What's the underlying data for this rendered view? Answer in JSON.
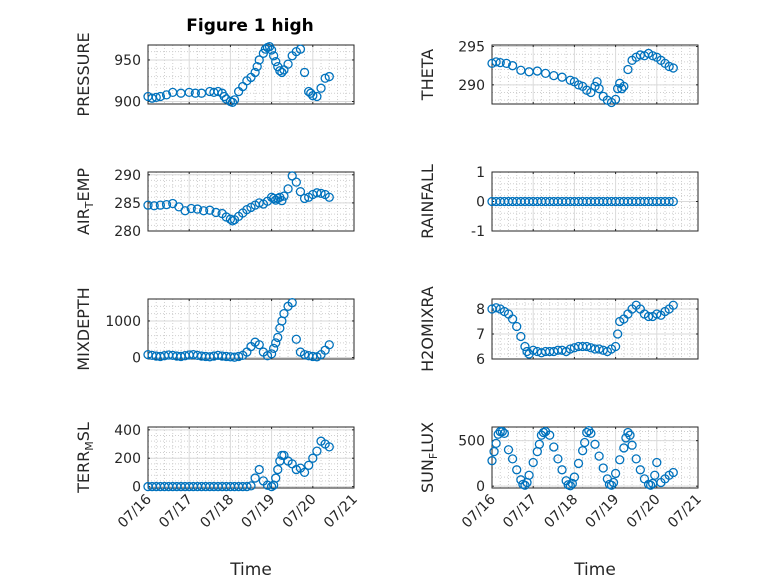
{
  "figure_title": "Figure 1 high",
  "x_axis_label": "Time",
  "x_tick_labels": [
    "07/16",
    "07/17",
    "07/18",
    "07/19",
    "07/20",
    "07/21"
  ],
  "marker_color": "#0072BD",
  "chart_data": [
    {
      "type": "scatter",
      "title": "Figure 1 high",
      "ylabel": "PRESSURE",
      "ylim": [
        897,
        968
      ],
      "yticks": [
        900,
        950
      ],
      "xlim": [
        0,
        5
      ],
      "show_xticklabels": false,
      "grid": true,
      "x": [
        0.0,
        0.1,
        0.2,
        0.3,
        0.45,
        0.6,
        0.8,
        1.0,
        1.15,
        1.3,
        1.5,
        1.6,
        1.7,
        1.8,
        1.85,
        1.9,
        2.0,
        2.05,
        2.1,
        2.2,
        2.3,
        2.4,
        2.5,
        2.6,
        2.65,
        2.7,
        2.8,
        2.85,
        2.9,
        2.95,
        3.0,
        3.05,
        3.1,
        3.15,
        3.2,
        3.25,
        3.3,
        3.4,
        3.5,
        3.6,
        3.7,
        3.8,
        3.9,
        3.95,
        4.0,
        4.1,
        4.2,
        4.3,
        4.4
      ],
      "y": [
        906,
        904,
        905,
        906,
        908,
        911,
        910,
        911,
        910,
        910,
        912,
        911,
        912,
        910,
        906,
        903,
        900,
        899,
        902,
        912,
        918,
        925,
        929,
        935,
        942,
        950,
        958,
        963,
        965,
        966,
        962,
        955,
        948,
        942,
        937,
        935,
        938,
        945,
        955,
        960,
        963,
        935,
        912,
        910,
        907,
        906,
        916,
        928,
        930
      ]
    },
    {
      "type": "scatter",
      "ylabel": "THETA",
      "ylim": [
        287.5,
        295.2
      ],
      "yticks": [
        290,
        295
      ],
      "xlim": [
        0,
        5
      ],
      "show_xticklabels": false,
      "grid": true,
      "x": [
        0.0,
        0.1,
        0.2,
        0.35,
        0.5,
        0.7,
        0.9,
        1.1,
        1.3,
        1.5,
        1.7,
        1.9,
        2.0,
        2.1,
        2.2,
        2.3,
        2.4,
        2.5,
        2.55,
        2.6,
        2.7,
        2.8,
        2.9,
        3.0,
        3.05,
        3.1,
        3.15,
        3.2,
        3.3,
        3.4,
        3.5,
        3.6,
        3.7,
        3.8,
        3.9,
        4.0,
        4.1,
        4.2,
        4.3,
        4.4
      ],
      "y": [
        292.8,
        293.0,
        292.9,
        292.8,
        292.5,
        291.9,
        291.7,
        291.8,
        291.5,
        291.2,
        291.0,
        290.6,
        290.4,
        290.0,
        289.8,
        289.3,
        289.0,
        289.8,
        290.4,
        289.5,
        288.5,
        288.0,
        287.7,
        288.1,
        289.5,
        290.2,
        289.5,
        289.8,
        292.0,
        293.2,
        293.6,
        293.9,
        293.8,
        294.1,
        293.8,
        293.6,
        293.2,
        292.8,
        292.4,
        292.2
      ]
    },
    {
      "type": "scatter",
      "ylabel": "AIR_TEMP",
      "ylim": [
        280,
        290.5
      ],
      "yticks": [
        280,
        285,
        290
      ],
      "xlim": [
        0,
        5
      ],
      "show_xticklabels": false,
      "grid": true,
      "x": [
        0.0,
        0.15,
        0.3,
        0.45,
        0.6,
        0.75,
        0.9,
        1.05,
        1.2,
        1.35,
        1.5,
        1.65,
        1.8,
        1.9,
        2.0,
        2.05,
        2.1,
        2.2,
        2.3,
        2.4,
        2.5,
        2.6,
        2.7,
        2.8,
        2.9,
        3.0,
        3.05,
        3.1,
        3.15,
        3.2,
        3.25,
        3.3,
        3.4,
        3.5,
        3.6,
        3.7,
        3.8,
        3.9,
        4.0,
        4.1,
        4.2,
        4.3,
        4.4
      ],
      "y": [
        284.6,
        284.5,
        284.6,
        284.7,
        284.9,
        284.3,
        283.6,
        284.0,
        283.9,
        283.6,
        283.7,
        283.3,
        283.1,
        282.5,
        282.1,
        281.8,
        282.0,
        282.6,
        283.2,
        283.8,
        284.2,
        284.6,
        285.0,
        284.8,
        285.3,
        286.0,
        285.8,
        285.5,
        285.8,
        286.0,
        285.4,
        286.2,
        287.5,
        289.8,
        288.7,
        287.0,
        285.8,
        286.0,
        286.5,
        286.8,
        286.7,
        286.5,
        286.0
      ]
    },
    {
      "type": "scatter",
      "ylabel": "RAINFALL",
      "ylim": [
        -1,
        1
      ],
      "yticks": [
        -1,
        0,
        1
      ],
      "xlim": [
        0,
        5
      ],
      "show_xticklabels": false,
      "grid": true,
      "x": [
        0.0,
        0.1,
        0.2,
        0.3,
        0.4,
        0.5,
        0.6,
        0.7,
        0.8,
        0.9,
        1.0,
        1.1,
        1.2,
        1.3,
        1.4,
        1.5,
        1.6,
        1.7,
        1.8,
        1.9,
        2.0,
        2.1,
        2.2,
        2.3,
        2.4,
        2.5,
        2.6,
        2.7,
        2.8,
        2.9,
        3.0,
        3.1,
        3.2,
        3.3,
        3.4,
        3.5,
        3.6,
        3.7,
        3.8,
        3.9,
        4.0,
        4.1,
        4.2,
        4.3,
        4.4
      ],
      "y": [
        0,
        0,
        0,
        0,
        0,
        0,
        0,
        0,
        0,
        0,
        0,
        0,
        0,
        0,
        0,
        0,
        0,
        0,
        0,
        0,
        0,
        0,
        0,
        0,
        0,
        0,
        0,
        0,
        0,
        0,
        0,
        0,
        0,
        0,
        0,
        0,
        0,
        0,
        0,
        0,
        0,
        0,
        0,
        0,
        0
      ]
    },
    {
      "type": "scatter",
      "ylabel": "MIXDEPTH",
      "ylim": [
        -40,
        1600
      ],
      "yticks": [
        0,
        1000
      ],
      "xlim": [
        0,
        5
      ],
      "show_xticklabels": false,
      "grid": true,
      "x": [
        0.0,
        0.1,
        0.2,
        0.3,
        0.4,
        0.5,
        0.6,
        0.7,
        0.8,
        0.9,
        1.0,
        1.1,
        1.2,
        1.3,
        1.4,
        1.5,
        1.6,
        1.7,
        1.8,
        1.9,
        2.0,
        2.1,
        2.2,
        2.3,
        2.4,
        2.5,
        2.6,
        2.7,
        2.8,
        2.9,
        3.0,
        3.05,
        3.1,
        3.15,
        3.2,
        3.25,
        3.3,
        3.4,
        3.5,
        3.6,
        3.7,
        3.8,
        3.9,
        4.0,
        4.1,
        4.2,
        4.3,
        4.4
      ],
      "y": [
        80,
        60,
        40,
        30,
        50,
        70,
        60,
        40,
        30,
        50,
        70,
        80,
        60,
        40,
        30,
        20,
        40,
        60,
        40,
        30,
        20,
        10,
        30,
        60,
        150,
        300,
        420,
        350,
        150,
        50,
        100,
        250,
        400,
        550,
        800,
        1000,
        1200,
        1400,
        1500,
        500,
        150,
        80,
        50,
        30,
        20,
        80,
        200,
        350
      ]
    },
    {
      "type": "scatter",
      "ylabel": "H2OMIXRA",
      "ylim": [
        6,
        8.4
      ],
      "yticks": [
        6,
        7,
        8
      ],
      "xlim": [
        0,
        5
      ],
      "show_xticklabels": false,
      "grid": true,
      "x": [
        0.0,
        0.1,
        0.2,
        0.3,
        0.4,
        0.5,
        0.6,
        0.7,
        0.8,
        0.85,
        0.9,
        1.0,
        1.1,
        1.2,
        1.3,
        1.4,
        1.5,
        1.6,
        1.7,
        1.8,
        1.9,
        2.0,
        2.1,
        2.2,
        2.3,
        2.4,
        2.5,
        2.6,
        2.7,
        2.8,
        2.9,
        3.0,
        3.05,
        3.1,
        3.2,
        3.3,
        3.4,
        3.5,
        3.6,
        3.7,
        3.8,
        3.9,
        4.0,
        4.1,
        4.2,
        4.3,
        4.4
      ],
      "y": [
        8.0,
        8.05,
        8.0,
        7.9,
        7.8,
        7.6,
        7.3,
        6.9,
        6.5,
        6.3,
        6.2,
        6.35,
        6.3,
        6.25,
        6.3,
        6.3,
        6.3,
        6.35,
        6.35,
        6.3,
        6.4,
        6.45,
        6.5,
        6.5,
        6.5,
        6.45,
        6.4,
        6.4,
        6.35,
        6.3,
        6.4,
        6.5,
        7.0,
        7.5,
        7.6,
        7.8,
        8.0,
        8.15,
        8.0,
        7.8,
        7.7,
        7.7,
        7.8,
        7.75,
        7.9,
        8.0,
        8.15
      ]
    },
    {
      "type": "scatter",
      "ylabel": "TERR_MSL",
      "ylim": [
        -10,
        420
      ],
      "yticks": [
        0,
        200,
        400
      ],
      "xlim": [
        0,
        5
      ],
      "show_xticklabels": true,
      "grid": true,
      "x": [
        0.0,
        0.1,
        0.2,
        0.3,
        0.4,
        0.5,
        0.6,
        0.7,
        0.8,
        0.9,
        1.0,
        1.1,
        1.2,
        1.3,
        1.4,
        1.5,
        1.6,
        1.7,
        1.8,
        1.9,
        2.0,
        2.1,
        2.2,
        2.3,
        2.4,
        2.5,
        2.6,
        2.7,
        2.8,
        2.9,
        3.0,
        3.05,
        3.1,
        3.15,
        3.2,
        3.25,
        3.3,
        3.4,
        3.5,
        3.6,
        3.7,
        3.8,
        3.9,
        4.0,
        4.1,
        4.2,
        4.3,
        4.4
      ],
      "y": [
        0,
        0,
        0,
        0,
        0,
        0,
        0,
        0,
        0,
        0,
        0,
        0,
        0,
        0,
        0,
        0,
        0,
        0,
        0,
        0,
        0,
        0,
        0,
        0,
        0,
        5,
        60,
        120,
        40,
        10,
        0,
        10,
        60,
        120,
        180,
        220,
        220,
        180,
        160,
        120,
        130,
        100,
        150,
        200,
        250,
        320,
        300,
        280
      ]
    },
    {
      "type": "scatter",
      "ylabel": "SUN_FLUX",
      "ylim": [
        -20,
        650
      ],
      "yticks": [
        0,
        500
      ],
      "xlim": [
        0,
        5
      ],
      "show_xticklabels": true,
      "grid": true,
      "x": [
        0.0,
        0.05,
        0.1,
        0.15,
        0.2,
        0.25,
        0.3,
        0.4,
        0.5,
        0.6,
        0.7,
        0.75,
        0.8,
        0.85,
        0.9,
        1.0,
        1.1,
        1.15,
        1.2,
        1.25,
        1.3,
        1.4,
        1.5,
        1.6,
        1.7,
        1.8,
        1.85,
        1.9,
        1.95,
        2.0,
        2.1,
        2.2,
        2.25,
        2.3,
        2.35,
        2.4,
        2.5,
        2.6,
        2.7,
        2.8,
        2.85,
        2.9,
        2.95,
        3.0,
        3.1,
        3.2,
        3.25,
        3.3,
        3.35,
        3.4,
        3.5,
        3.6,
        3.7,
        3.8,
        3.85,
        3.9,
        3.95,
        4.0,
        4.1,
        4.2,
        4.3,
        4.4
      ],
      "y": [
        280,
        380,
        470,
        570,
        600,
        600,
        580,
        400,
        300,
        180,
        70,
        20,
        10,
        40,
        120,
        260,
        380,
        460,
        560,
        590,
        600,
        560,
        430,
        300,
        180,
        60,
        15,
        5,
        30,
        100,
        250,
        390,
        480,
        590,
        610,
        580,
        460,
        330,
        200,
        80,
        20,
        10,
        40,
        140,
        290,
        420,
        530,
        590,
        560,
        450,
        300,
        180,
        80,
        20,
        10,
        30,
        120,
        260,
        40,
        80,
        120,
        150
      ]
    }
  ]
}
